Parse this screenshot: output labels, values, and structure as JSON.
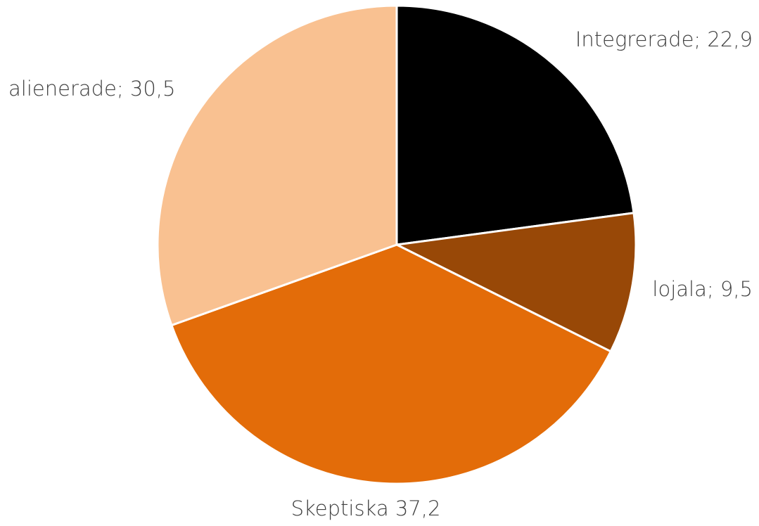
{
  "chart_data": {
    "type": "pie",
    "values": [
      22.9,
      9.5,
      37.2,
      30.5
    ],
    "value_labels": [
      "Integrerade; 22,9",
      "lojala; 9,5",
      "Skeptiska 37,2",
      "alienerade; 30,5"
    ],
    "colors": [
      "#000000",
      "#984807",
      "#e36c09",
      "#f9c191"
    ]
  }
}
